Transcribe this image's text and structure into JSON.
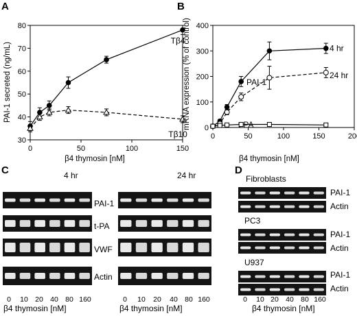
{
  "panels": {
    "A": {
      "letter": "A"
    },
    "B": {
      "letter": "B"
    },
    "C": {
      "letter": "C",
      "time_left": "4 hr",
      "time_right": "24 hr",
      "rows": [
        "PAI-1",
        "t-PA",
        "VWF",
        "Actin"
      ]
    },
    "D": {
      "letter": "D",
      "groups": [
        {
          "name": "Fibroblasts",
          "rows": [
            "PAI-1",
            "Actin"
          ]
        },
        {
          "name": "PC3",
          "rows": [
            "PAI-1",
            "Actin"
          ]
        },
        {
          "name": "U937",
          "rows": [
            "PAI-1",
            "Actin"
          ]
        }
      ]
    }
  },
  "lanes": [
    "0",
    "10",
    "20",
    "40",
    "80",
    "160"
  ],
  "xlabel": "β4 thymosin [nM]",
  "chart_data": [
    {
      "type": "line",
      "panel": "A",
      "xlabel": "β4 thymosin [nM]",
      "ylabel": "PAI-1 secreted (ng/mL)",
      "xlim": [
        0,
        160
      ],
      "ylim": [
        30,
        80
      ],
      "xticks": [
        "0",
        "50",
        "100",
        "150"
      ],
      "yticks": [
        "30",
        "40",
        "50",
        "60",
        "70",
        "80"
      ],
      "series": [
        {
          "name": "Tβ4",
          "marker": "filled-circle",
          "style": "solid",
          "x": [
            0,
            10,
            20,
            40,
            80,
            160
          ],
          "y": [
            36,
            42,
            45,
            55,
            65,
            78
          ],
          "err": [
            2,
            2,
            2,
            2.5,
            1.5,
            2
          ]
        },
        {
          "name": "Tβ10",
          "marker": "open-triangle",
          "style": "dashed",
          "x": [
            0,
            10,
            20,
            40,
            80,
            160
          ],
          "y": [
            35,
            40,
            42,
            43,
            42,
            39
          ],
          "err": [
            1.5,
            1.5,
            1.5,
            1.5,
            1.5,
            1.5
          ]
        }
      ]
    },
    {
      "type": "line",
      "panel": "B",
      "xlabel": "β4 thymosin [nM]",
      "ylabel": "mRNA expression (% of control)",
      "xlim": [
        0,
        200
      ],
      "ylim": [
        0,
        400
      ],
      "xticks": [
        "0",
        "50",
        "100",
        "150",
        "200"
      ],
      "yticks": [
        "0",
        "100",
        "200",
        "300",
        "400"
      ],
      "series_labels": {
        "group": "PAI-1",
        "tpa": "t-PA"
      },
      "series": [
        {
          "name": "4 hr",
          "marker": "filled-circle",
          "style": "solid",
          "x": [
            0,
            10,
            20,
            40,
            80,
            160
          ],
          "y": [
            5,
            25,
            80,
            180,
            300,
            310
          ],
          "err": [
            3,
            5,
            10,
            20,
            35,
            20
          ]
        },
        {
          "name": "24 hr",
          "marker": "open-circle",
          "style": "dashed",
          "x": [
            0,
            10,
            20,
            40,
            80,
            160
          ],
          "y": [
            5,
            15,
            60,
            120,
            195,
            215
          ],
          "err": [
            3,
            5,
            10,
            15,
            45,
            20
          ]
        },
        {
          "name": "t-PA",
          "marker": "open-square",
          "style": "solid",
          "x": [
            0,
            10,
            20,
            40,
            80,
            160
          ],
          "y": [
            5,
            8,
            10,
            12,
            12,
            10
          ],
          "err": [
            3,
            3,
            3,
            3,
            3,
            3
          ]
        }
      ]
    }
  ]
}
